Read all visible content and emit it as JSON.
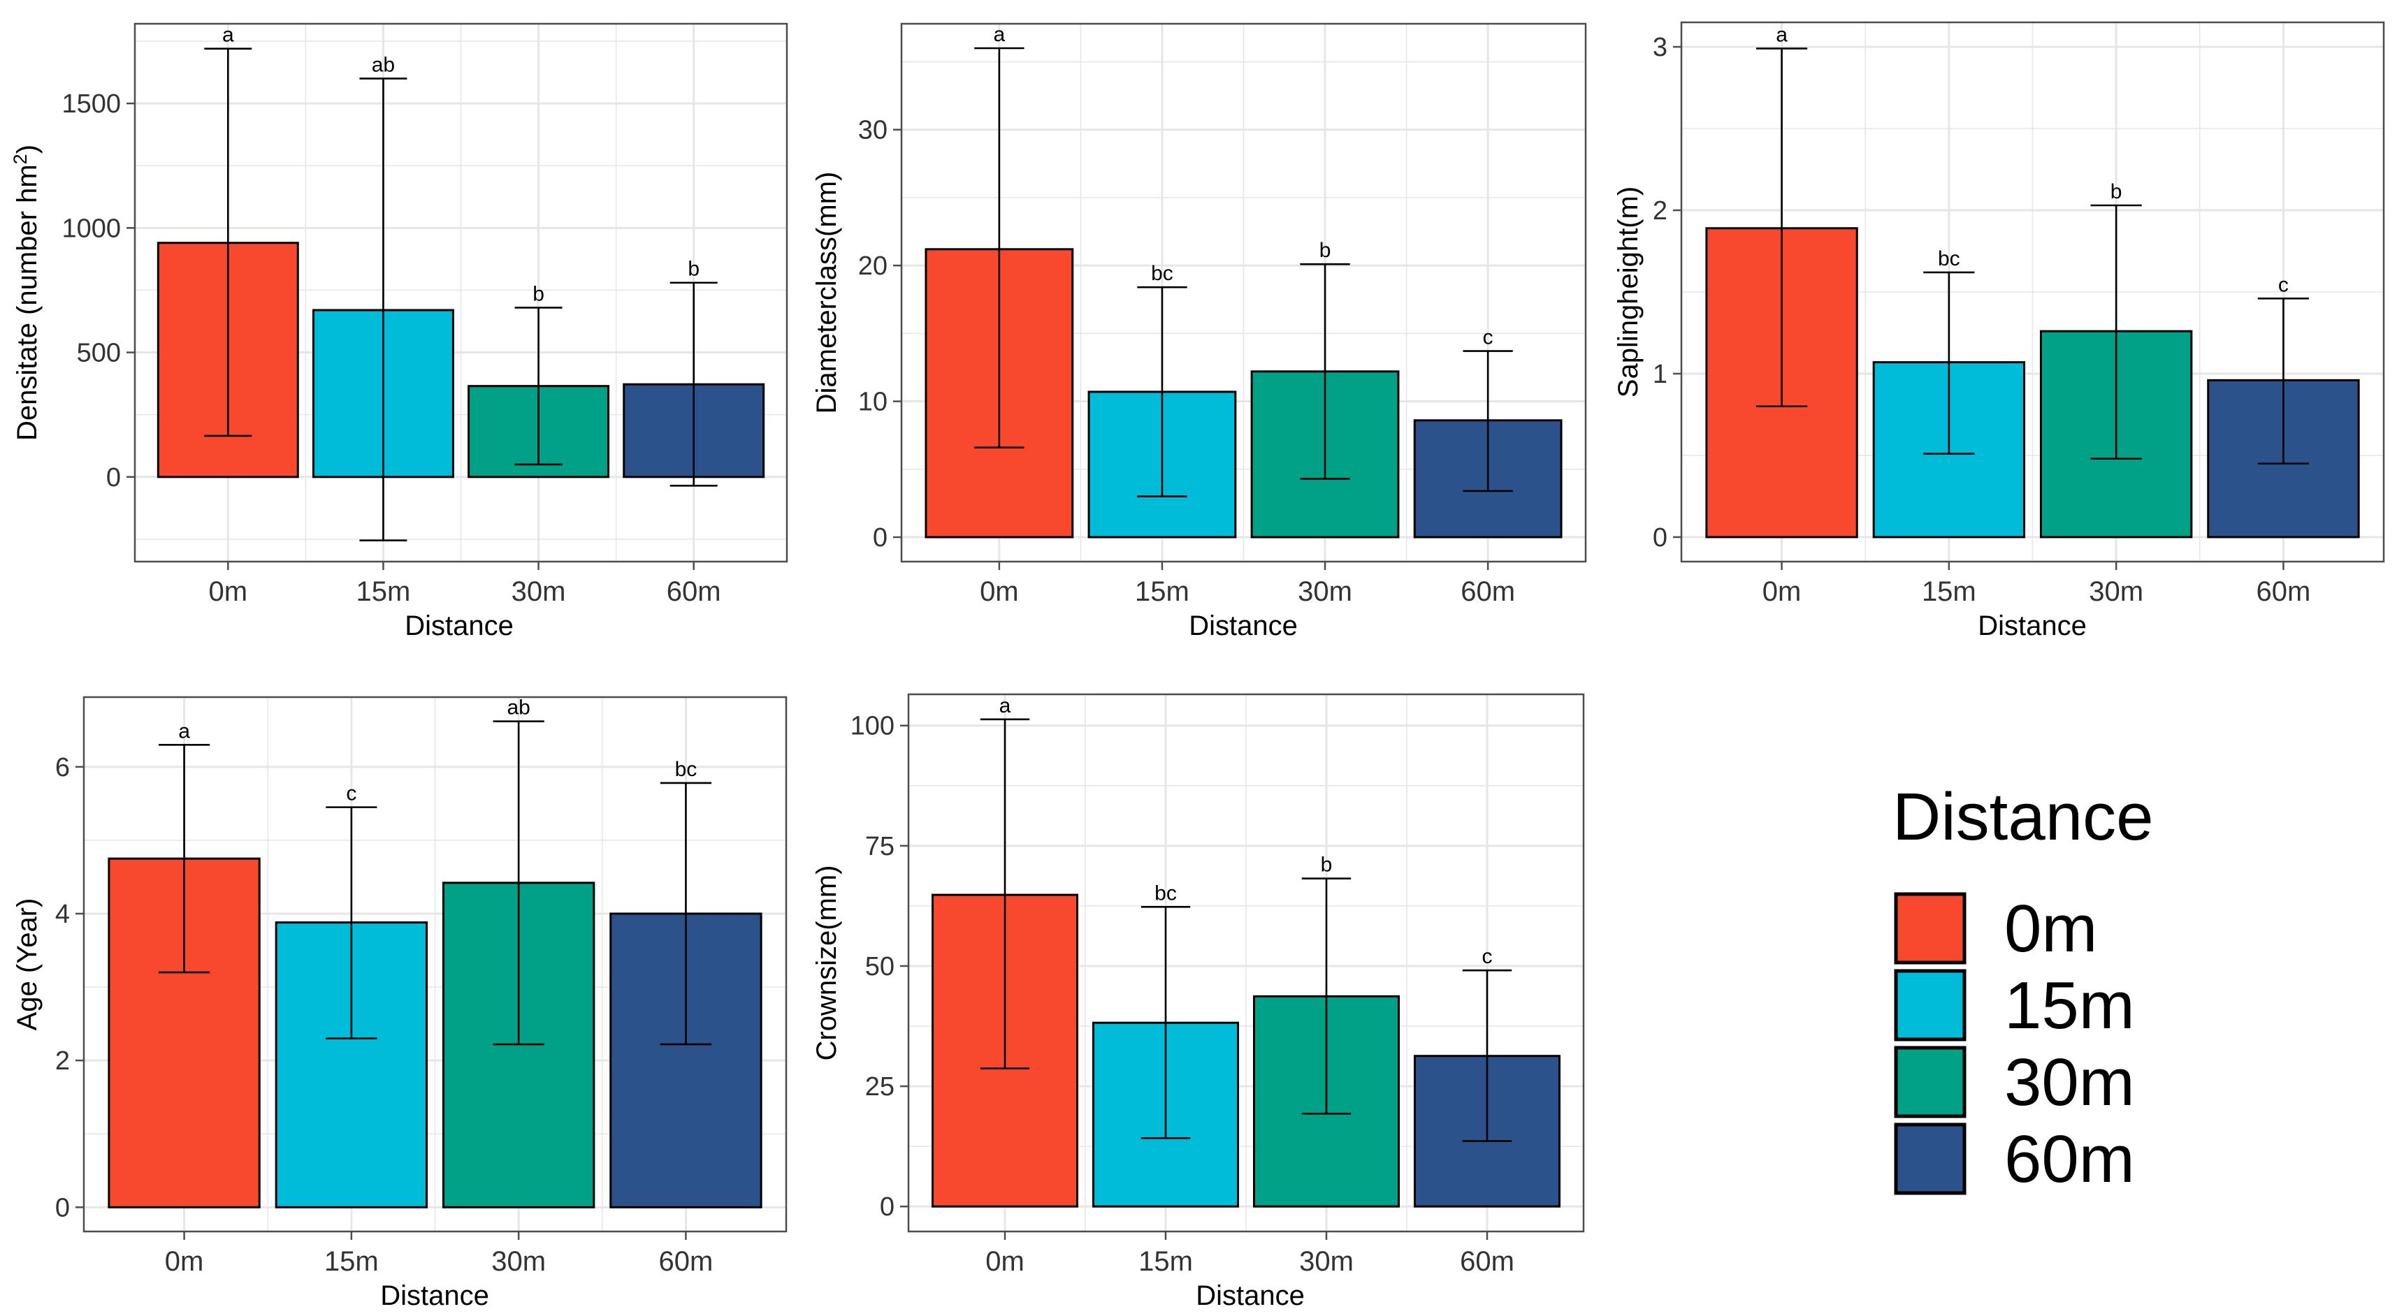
{
  "colors": {
    "0m": "#F8482E",
    "15m": "#00BCD8",
    "30m": "#00A187",
    "60m": "#2C528B",
    "grid": "#E6E6E6",
    "frame": "#4D4D4D",
    "tick_text": "#333333"
  },
  "legend": {
    "title": "Distance",
    "items": [
      "0m",
      "15m",
      "30m",
      "60m"
    ]
  },
  "chart_data": [
    {
      "type": "bar",
      "xlabel": "Distance",
      "ylabel": "Densitate (number hm",
      "ylabel_sup": "2",
      "ylabel_close": ")",
      "categories": [
        "0m",
        "15m",
        "30m",
        "60m"
      ],
      "values": [
        940,
        670,
        365,
        372
      ],
      "err_low": [
        165,
        -255,
        50,
        -35
      ],
      "err_high": [
        1720,
        1600,
        680,
        780
      ],
      "letters": [
        "a",
        "ab",
        "b",
        "b"
      ],
      "ylim": [
        -340,
        1820
      ],
      "yticks": [
        0,
        500,
        1000,
        1500
      ],
      "ytick_labels": [
        "0",
        "500",
        "1000",
        "1500"
      ],
      "yminor": [
        -250,
        250,
        750,
        1250,
        1750
      ]
    },
    {
      "type": "bar",
      "xlabel": "Distance",
      "ylabel": "Diameterclass(mm)",
      "categories": [
        "0m",
        "15m",
        "30m",
        "60m"
      ],
      "values": [
        21.2,
        10.7,
        12.2,
        8.6
      ],
      "err_low": [
        6.6,
        3.0,
        4.3,
        3.4
      ],
      "err_high": [
        36.0,
        18.4,
        20.1,
        13.7
      ],
      "letters": [
        "a",
        "bc",
        "b",
        "c"
      ],
      "ylim": [
        -1.8,
        37.8
      ],
      "yticks": [
        0,
        10,
        20,
        30
      ],
      "ytick_labels": [
        "0",
        "10",
        "20",
        "30"
      ],
      "yminor": [
        5,
        15,
        25,
        35
      ]
    },
    {
      "type": "bar",
      "xlabel": "Distance",
      "ylabel": "Saplingheight(m)",
      "categories": [
        "0m",
        "15m",
        "30m",
        "60m"
      ],
      "values": [
        1.89,
        1.07,
        1.26,
        0.96
      ],
      "err_low": [
        0.8,
        0.51,
        0.48,
        0.45
      ],
      "err_high": [
        2.99,
        1.62,
        2.03,
        1.46
      ],
      "letters": [
        "a",
        "bc",
        "b",
        "c"
      ],
      "ylim": [
        -0.15,
        3.15
      ],
      "yticks": [
        0,
        1,
        2,
        3
      ],
      "ytick_labels": [
        "0",
        "1",
        "2",
        "3"
      ],
      "yminor": [
        0.5,
        1.5,
        2.5
      ]
    },
    {
      "type": "bar",
      "xlabel": "Distance",
      "ylabel": "Age (Year)",
      "categories": [
        "0m",
        "15m",
        "30m",
        "60m"
      ],
      "values": [
        4.75,
        3.88,
        4.42,
        4.0
      ],
      "err_low": [
        3.2,
        2.3,
        2.22,
        2.22
      ],
      "err_high": [
        6.3,
        5.45,
        6.62,
        5.78
      ],
      "letters": [
        "a",
        "c",
        "ab",
        "bc"
      ],
      "ylim": [
        -0.33,
        6.95
      ],
      "yticks": [
        0,
        2,
        4,
        6
      ],
      "ytick_labels": [
        "0",
        "2",
        "4",
        "6"
      ],
      "yminor": [
        1,
        3,
        5
      ]
    },
    {
      "type": "bar",
      "xlabel": "Distance",
      "ylabel": "Crownsize(mm)",
      "categories": [
        "0m",
        "15m",
        "30m",
        "60m"
      ],
      "values": [
        64.8,
        38.2,
        43.7,
        31.3
      ],
      "err_low": [
        28.7,
        14.2,
        19.3,
        13.6
      ],
      "err_high": [
        101.3,
        62.3,
        68.2,
        49.1
      ],
      "letters": [
        "a",
        "bc",
        "b",
        "c"
      ],
      "ylim": [
        -5.2,
        106.5
      ],
      "yticks": [
        0,
        25,
        50,
        75,
        100
      ],
      "ytick_labels": [
        "0",
        "25",
        "50",
        "75",
        "100"
      ],
      "yminor": [
        12.5,
        37.5,
        62.5,
        87.5
      ]
    }
  ]
}
